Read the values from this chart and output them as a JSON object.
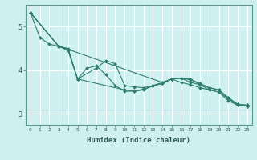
{
  "xlabel": "Humidex (Indice chaleur)",
  "ylabel": "",
  "background_color": "#cff0f0",
  "grid_color": "#ffffff",
  "line_color": "#2e7d6e",
  "xlim": [
    -0.5,
    23.5
  ],
  "ylim": [
    2.75,
    5.5
  ],
  "yticks": [
    3,
    4,
    5
  ],
  "xticks": [
    0,
    1,
    2,
    3,
    4,
    5,
    6,
    7,
    8,
    9,
    10,
    11,
    12,
    13,
    14,
    15,
    16,
    17,
    18,
    19,
    20,
    21,
    22,
    23
  ],
  "series": [
    {
      "x": [
        0,
        1,
        2,
        3,
        4,
        5,
        10,
        11,
        12,
        14,
        15,
        16,
        17,
        18,
        19,
        20,
        21,
        22,
        23
      ],
      "y": [
        5.32,
        4.75,
        4.6,
        4.55,
        4.5,
        3.8,
        3.55,
        3.52,
        3.57,
        3.7,
        3.8,
        3.82,
        3.8,
        3.67,
        3.55,
        3.5,
        3.3,
        3.2,
        3.18
      ]
    },
    {
      "x": [
        0,
        3,
        4,
        5,
        6,
        7,
        8,
        9,
        10,
        11,
        12,
        13,
        14,
        15,
        16,
        17,
        18,
        19,
        20,
        21,
        22,
        23
      ],
      "y": [
        5.32,
        4.55,
        4.45,
        3.8,
        4.05,
        4.1,
        3.9,
        3.65,
        3.52,
        3.52,
        3.55,
        3.65,
        3.7,
        3.8,
        3.72,
        3.67,
        3.6,
        3.55,
        3.5,
        3.35,
        3.2,
        3.18
      ]
    },
    {
      "x": [
        0,
        3,
        4,
        5,
        7,
        8,
        9,
        10,
        11,
        12,
        13,
        14,
        15,
        16,
        17,
        18,
        19,
        20,
        21,
        22,
        23
      ],
      "y": [
        5.32,
        4.55,
        4.48,
        3.8,
        4.05,
        4.22,
        4.15,
        3.65,
        3.62,
        3.6,
        3.65,
        3.72,
        3.8,
        3.82,
        3.72,
        3.67,
        3.6,
        3.55,
        3.37,
        3.22,
        3.2
      ]
    },
    {
      "x": [
        0,
        3,
        4,
        14,
        15,
        16,
        17,
        18,
        19,
        20,
        21,
        22,
        23
      ],
      "y": [
        5.32,
        4.55,
        4.48,
        3.72,
        3.8,
        3.82,
        3.78,
        3.7,
        3.6,
        3.55,
        3.37,
        3.22,
        3.2
      ]
    }
  ]
}
